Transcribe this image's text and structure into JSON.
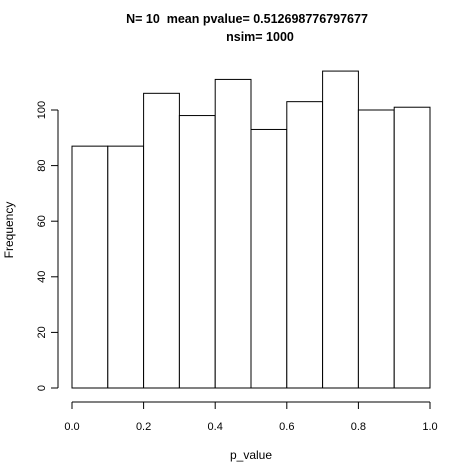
{
  "chart_data": {
    "type": "bar",
    "title": "N= 10  mean pvalue= 0.512698776797677",
    "subtitle": "nsim= 1000",
    "xlabel": "p_value",
    "ylabel": "Frequency",
    "bin_edges": [
      0.0,
      0.1,
      0.2,
      0.3,
      0.4,
      0.5,
      0.6,
      0.7,
      0.8,
      0.9,
      1.0
    ],
    "values": [
      87,
      87,
      106,
      98,
      111,
      93,
      103,
      114,
      100,
      101
    ],
    "xlim": [
      0.0,
      1.0
    ],
    "ylim": [
      0,
      115
    ],
    "x_ticks": [
      "0.0",
      "0.2",
      "0.4",
      "0.6",
      "0.8",
      "1.0"
    ],
    "y_ticks": [
      "0",
      "20",
      "40",
      "60",
      "80",
      "100"
    ],
    "grid": false,
    "legend": "none",
    "bar_fill": "#ffffff",
    "bar_stroke": "#000000"
  }
}
